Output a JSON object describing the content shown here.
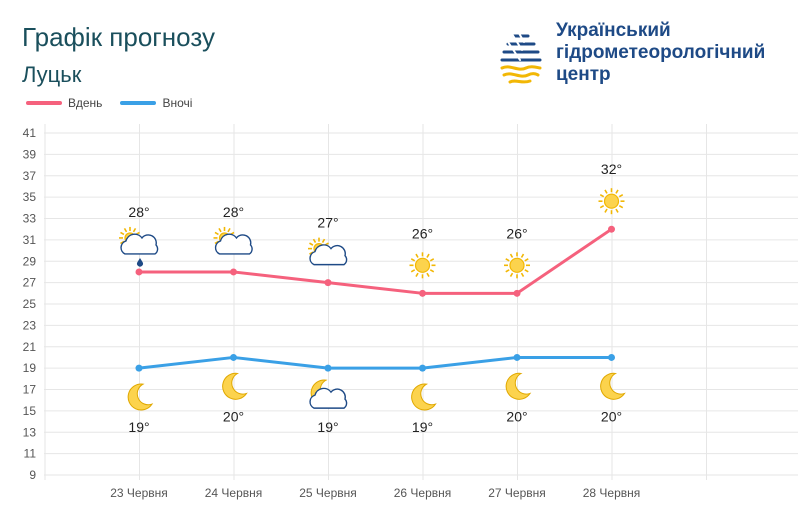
{
  "header": {
    "title": "Графік прогнозу",
    "city": "Луцьк"
  },
  "brand": {
    "line1": "Український",
    "line2": "гідрометеорологічний",
    "line3": "центр"
  },
  "colors": {
    "day": "#f5617d",
    "night": "#3aa0e6",
    "grid": "#e6e6e6",
    "brand": "#1e4a86",
    "gold": "#f2b705"
  },
  "chart_data": {
    "type": "line",
    "categories": [
      "23 Червня",
      "24 Червня",
      "25 Червня",
      "26 Червня",
      "27 Червня",
      "28 Червня"
    ],
    "yticks": [
      41,
      39,
      37,
      35,
      33,
      31,
      29,
      27,
      25,
      23,
      21,
      19,
      17,
      15,
      13,
      11,
      9
    ],
    "ylim": [
      9,
      41
    ],
    "grid": true,
    "legend_position": "top-left",
    "series": [
      {
        "name": "Вдень",
        "values": [
          28,
          28,
          27,
          26,
          26,
          32
        ],
        "labels": [
          "28°",
          "28°",
          "27°",
          "26°",
          "26°",
          "32°"
        ],
        "icons": [
          "sun-cloud-rain-icon",
          "sun-cloud-icon",
          "sun-cloud-icon",
          "sun-icon",
          "sun-icon",
          "sun-icon"
        ]
      },
      {
        "name": "Вночі",
        "values": [
          19,
          20,
          19,
          19,
          20,
          20
        ],
        "labels": [
          "19°",
          "20°",
          "19°",
          "19°",
          "20°",
          "20°"
        ],
        "icons": [
          "moon-icon",
          "moon-icon",
          "moon-cloud-icon",
          "moon-icon",
          "moon-icon",
          "moon-icon"
        ]
      }
    ]
  }
}
